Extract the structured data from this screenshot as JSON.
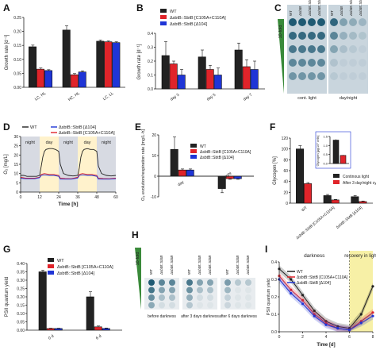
{
  "panels": {
    "A": {
      "letter": "A"
    },
    "B": {
      "letter": "B"
    },
    "C": {
      "letter": "C"
    },
    "D": {
      "letter": "D"
    },
    "E": {
      "letter": "E"
    },
    "F": {
      "letter": "F"
    },
    "G": {
      "letter": "G"
    },
    "H": {
      "letter": "H"
    },
    "I": {
      "letter": "I"
    }
  },
  "colors": {
    "wt": "#222222",
    "c105": "#e0242a",
    "d104": "#1f35d6",
    "night": "#d7dae2",
    "day": "#fff2cc",
    "green": "#3a8a3a",
    "spot": "#1f5a73"
  },
  "legend": {
    "wt": "WT",
    "c105": "ΔsbtB::SbtB [C105A+C110A]",
    "d104": "ΔsbtB::SbtB [Δ104]",
    "c105_short": "ΔsbtB::SbtB [C105A+C110A]",
    "d104_short": "ΔsbtB::SbtB [Δ104]"
  },
  "C": {
    "tenfold": "10-fold",
    "cols": [
      "WT",
      "ΔsbtB",
      "ΔsbtB::SbtB [C105A+C110A]",
      "ΔsbtB::SbtB [Δ104]"
    ],
    "cond1": "cont. light",
    "cond2": "day/night"
  },
  "D": {
    "night": "night",
    "day": "day"
  },
  "F": {
    "legend1": "Continous light",
    "legend2": "After 3 day/night cycles",
    "inset_ylabel": "Glycogen [µg/10⁷ cells]",
    "xt": [
      "WT",
      "ΔsbtB::SbtB [C105A+C110A]",
      "ΔsbtB::SbtB [Δ104]"
    ]
  },
  "H": {
    "tenfold": "10-fold",
    "cols": [
      "WT",
      "ΔsbtB::SbtB [C105A+C110A]",
      "ΔsbtB::SbtB [Δ104]"
    ],
    "cond1": "before darkness",
    "cond2": "after 3 days darkness",
    "cond3": "after 6 days darkness"
  },
  "I": {
    "darkness": "darkness",
    "recovery": "recovery in light"
  },
  "chart_data": [
    {
      "panel": "A",
      "type": "bar",
      "categories": [
        "LC, HL",
        "HC, HL",
        "LC, LL"
      ],
      "ylabel": "Growth rate [d⁻¹]",
      "ylim": [
        0,
        0.25
      ],
      "yticks": [
        0.0,
        0.05,
        0.1,
        0.15,
        0.2,
        0.25
      ],
      "series": [
        {
          "name": "WT",
          "values": [
            0.145,
            0.205,
            0.165
          ],
          "err": [
            0.006,
            0.015,
            0.004
          ]
        },
        {
          "name": "ΔsbtB::SbtB [C105A+C110A]",
          "values": [
            0.065,
            0.045,
            0.163
          ],
          "err": [
            0.004,
            0.004,
            0.003
          ]
        },
        {
          "name": "ΔsbtB::SbtB [Δ104]",
          "values": [
            0.06,
            0.055,
            0.16
          ],
          "err": [
            0.003,
            0.004,
            0.003
          ]
        }
      ]
    },
    {
      "panel": "B",
      "type": "bar",
      "categories": [
        "day 3",
        "day 5",
        "day 7"
      ],
      "ylabel": "Growth rate [d⁻¹]",
      "ylim": [
        0,
        0.4
      ],
      "yticks": [
        0.0,
        0.1,
        0.2,
        0.3,
        0.4
      ],
      "series": [
        {
          "name": "WT",
          "values": [
            0.24,
            0.23,
            0.28
          ],
          "err": [
            0.1,
            0.05,
            0.05
          ]
        },
        {
          "name": "ΔsbtB::SbtB [C105A+C110A]",
          "values": [
            0.18,
            0.14,
            0.16
          ],
          "err": [
            0.02,
            0.03,
            0.05
          ]
        },
        {
          "name": "ΔsbtB::SbtB [Δ104]",
          "values": [
            0.1,
            0.1,
            0.14
          ],
          "err": [
            0.04,
            0.05,
            0.06
          ]
        }
      ]
    },
    {
      "panel": "D",
      "type": "line",
      "xlabel": "Time [h]",
      "ylabel": "O₂ [mg/L]",
      "xlim": [
        0,
        60
      ],
      "ylim": [
        0,
        30
      ],
      "xticks": [
        0,
        12,
        24,
        36,
        48,
        60
      ],
      "yticks": [
        0,
        5,
        10,
        15,
        20,
        25,
        30
      ],
      "shading": [
        {
          "label": "night",
          "from": 0,
          "to": 12
        },
        {
          "label": "day",
          "from": 12,
          "to": 24
        },
        {
          "label": "night",
          "from": 24,
          "to": 36
        },
        {
          "label": "day",
          "from": 36,
          "to": 48
        },
        {
          "label": "night",
          "from": 48,
          "to": 60
        }
      ],
      "series": [
        {
          "name": "WT",
          "x": [
            0,
            2,
            4,
            6,
            8,
            10,
            12,
            13,
            14,
            15,
            16,
            18,
            20,
            22,
            24,
            25,
            27,
            30,
            33,
            36,
            37,
            38,
            39,
            40,
            42,
            44,
            46,
            48,
            49,
            51,
            54,
            57,
            60
          ],
          "y": [
            9,
            9,
            8.5,
            8.5,
            8.5,
            8.5,
            9,
            14,
            19,
            22,
            23,
            23.5,
            23.5,
            23,
            22,
            15,
            10,
            9,
            8.7,
            9,
            13,
            19,
            22,
            23,
            23.5,
            23,
            23,
            22,
            14,
            10,
            9,
            8.7,
            9
          ]
        },
        {
          "name": "ΔsbtB::SbtB [C105A+C110A]",
          "x": [
            0,
            3,
            6,
            9,
            12,
            13,
            15,
            18,
            21,
            24,
            25,
            28,
            32,
            36,
            37,
            39,
            42,
            45,
            48,
            49,
            52,
            56,
            60
          ],
          "y": [
            8,
            7.5,
            7.5,
            7.5,
            8,
            9.5,
            10,
            9.5,
            9.5,
            9,
            7.5,
            7.3,
            7.2,
            8,
            9.5,
            10,
            9.5,
            9.5,
            9,
            7.5,
            7.3,
            7.2,
            7.5
          ]
        },
        {
          "name": "ΔsbtB::SbtB [Δ104]",
          "x": [
            0,
            3,
            6,
            9,
            12,
            13,
            15,
            18,
            21,
            24,
            25,
            28,
            32,
            36,
            37,
            39,
            42,
            45,
            48,
            49,
            52,
            56,
            60
          ],
          "y": [
            7.5,
            7.2,
            7.2,
            7.2,
            7.8,
            9,
            9.3,
            9,
            9,
            8.5,
            7,
            7,
            7,
            7.6,
            9,
            9.3,
            9,
            9,
            8.5,
            7,
            7,
            7,
            7.2
          ]
        }
      ]
    },
    {
      "panel": "E",
      "type": "bar",
      "categories": [
        "day",
        "night"
      ],
      "ylabel": "O₂ evolution/respiration rate [mg/L·h]",
      "ylim": [
        -10,
        20
      ],
      "yticks": [
        -10,
        0,
        10,
        20
      ],
      "series": [
        {
          "name": "WT",
          "values": [
            13,
            -6
          ],
          "err": [
            6,
            2
          ]
        },
        {
          "name": "ΔsbtB::SbtB [C105A+C110A]",
          "values": [
            3,
            -1.2
          ],
          "err": [
            0.5,
            0.3
          ]
        },
        {
          "name": "ΔsbtB::SbtB [Δ104]",
          "values": [
            3,
            -1.2
          ],
          "err": [
            0.5,
            0.3
          ]
        }
      ]
    },
    {
      "panel": "F",
      "type": "bar",
      "categories": [
        "WT",
        "ΔsbtB::SbtB [C105A+C110A]",
        "ΔsbtB::SbtB [Δ104]"
      ],
      "ylabel": "Glycogen [%]",
      "ylim": [
        0,
        120
      ],
      "yticks": [
        0,
        20,
        40,
        60,
        80,
        100,
        120
      ],
      "series": [
        {
          "name": "Continous light",
          "values": [
            100,
            14,
            12
          ],
          "err": [
            6,
            2,
            2
          ]
        },
        {
          "name": "After 3 day/night cycles",
          "values": [
            36,
            6,
            3
          ],
          "err": [
            2,
            1,
            1
          ]
        }
      ],
      "inset": {
        "type": "bar",
        "categories": [
          "Continous light",
          "After 3 day/night cycles"
        ],
        "values": [
          1.3,
          0.45
        ],
        "err": [
          0.05,
          0.03
        ],
        "ylim": [
          0,
          1.5
        ],
        "yticks": [
          0.0,
          0.5,
          1.0,
          1.5
        ]
      }
    },
    {
      "panel": "G",
      "type": "bar",
      "categories": [
        "0 d",
        "6 d"
      ],
      "ylabel": "PSII quantum yield",
      "ylim": [
        0,
        0.4
      ],
      "yticks": [
        0.0,
        0.05,
        0.1,
        0.15,
        0.2,
        0.25,
        0.3,
        0.35,
        0.4
      ],
      "series": [
        {
          "name": "WT",
          "values": [
            0.35,
            0.2
          ],
          "err": [
            0.01,
            0.03
          ]
        },
        {
          "name": "ΔsbtB::SbtB [C105A+C110A]",
          "values": [
            0.01,
            0.02
          ],
          "err": [
            0.002,
            0.005
          ]
        },
        {
          "name": "ΔsbtB::SbtB [Δ104]",
          "values": [
            0.01,
            0.01
          ],
          "err": [
            0.002,
            0.003
          ]
        }
      ]
    },
    {
      "panel": "I",
      "type": "line",
      "xlabel": "Time [d]",
      "ylabel": "PSII quantum yield",
      "xlim": [
        0,
        8
      ],
      "ylim": [
        0,
        0.4
      ],
      "xticks": [
        0,
        2,
        4,
        6,
        8
      ],
      "yticks": [
        0.0,
        0.1,
        0.2,
        0.3,
        0.4
      ],
      "series": [
        {
          "name": "WT",
          "x": [
            0,
            1,
            2,
            3,
            4,
            5,
            6,
            7,
            8
          ],
          "y": [
            0.36,
            0.3,
            0.21,
            0.12,
            0.06,
            0.03,
            0.02,
            0.1,
            0.26
          ]
        },
        {
          "name": "ΔsbtB::SbtB [C105A+C110A]",
          "x": [
            0,
            1,
            2,
            3,
            4,
            5,
            6,
            7,
            8
          ],
          "y": [
            0.32,
            0.24,
            0.18,
            0.1,
            0.05,
            0.02,
            0.01,
            0.06,
            0.11
          ]
        },
        {
          "name": "ΔsbtB::SbtB [Δ104]",
          "x": [
            0,
            1,
            2,
            3,
            4,
            5,
            6,
            7,
            8
          ],
          "y": [
            0.3,
            0.22,
            0.16,
            0.09,
            0.04,
            0.02,
            0.01,
            0.05,
            0.09
          ]
        }
      ]
    }
  ]
}
